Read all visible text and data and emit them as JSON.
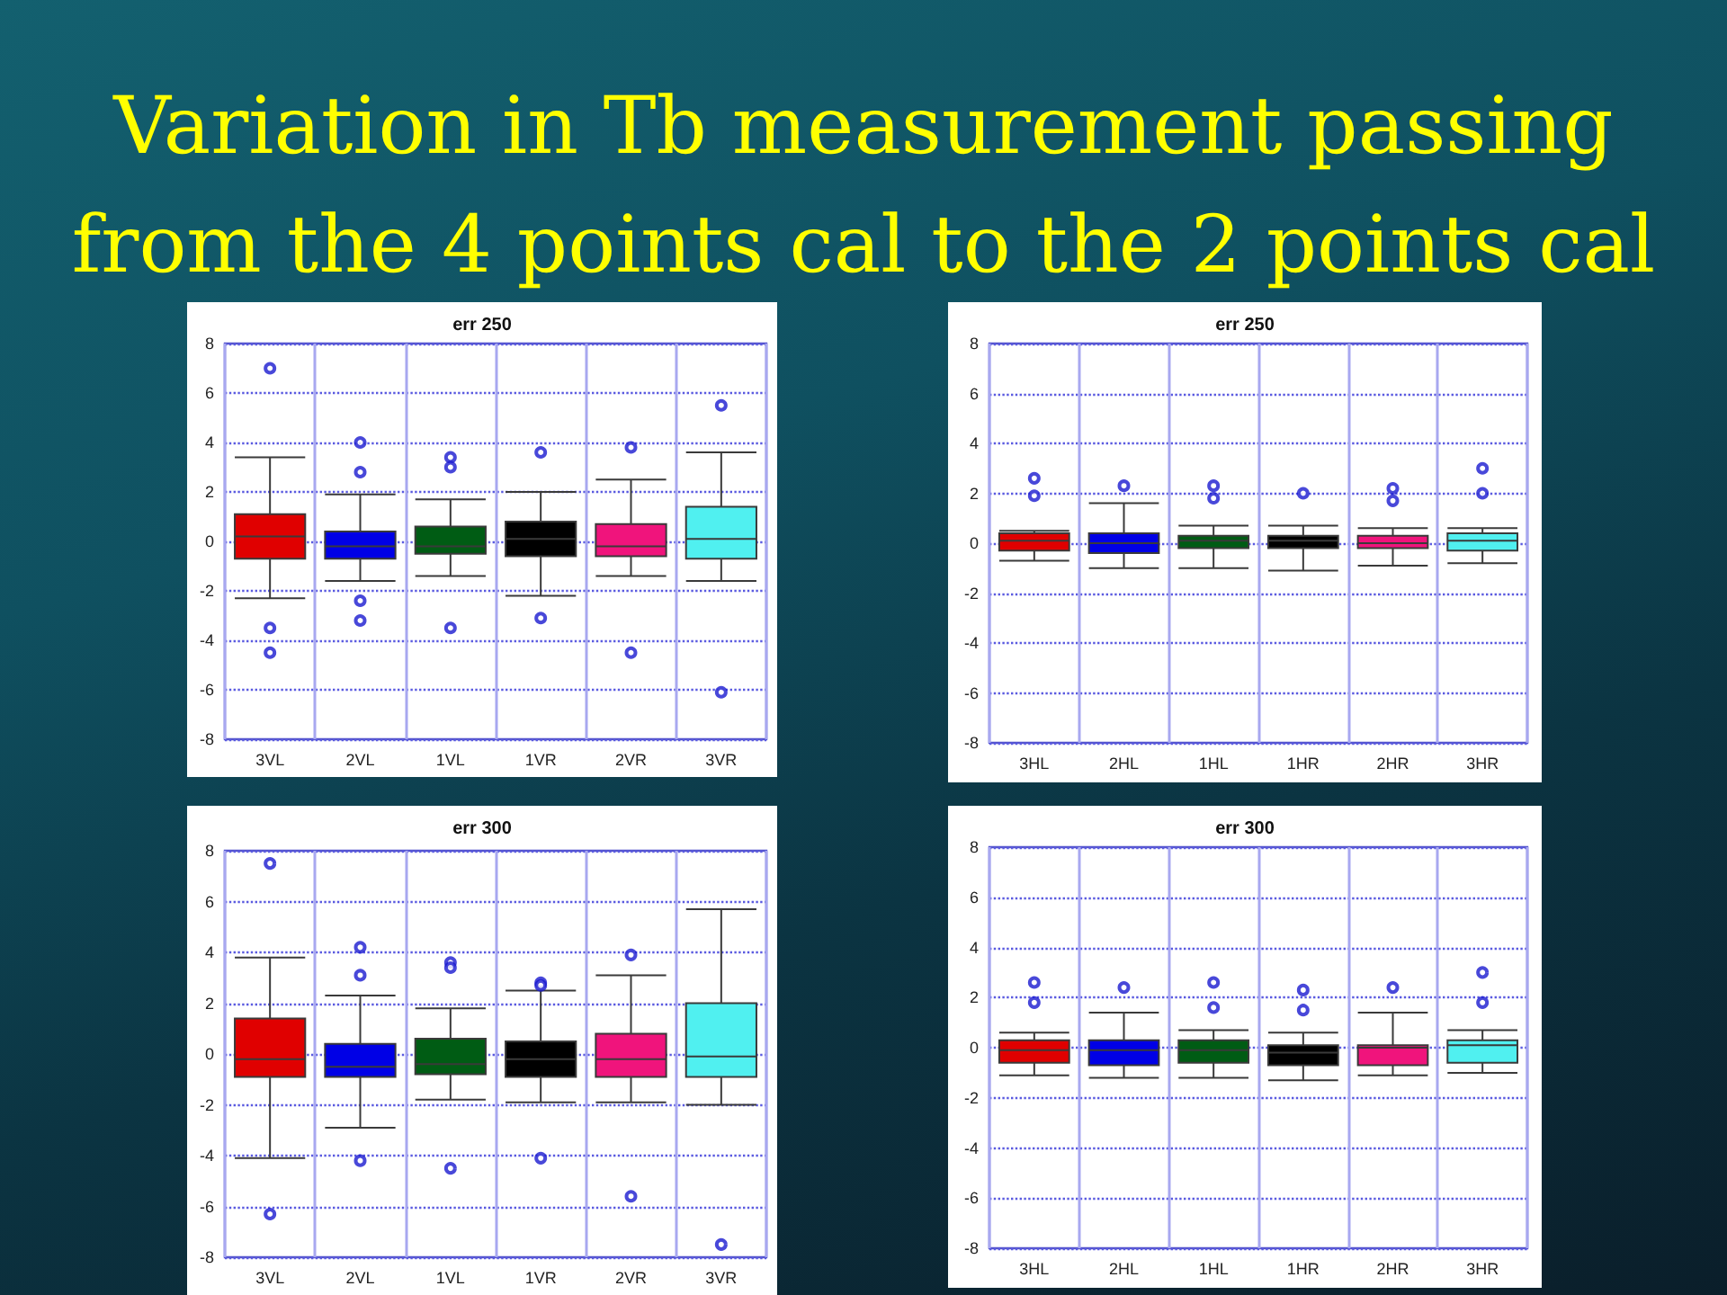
{
  "chart_data": [
    {
      "type": "other",
      "title": "Variation in Tb measurement passing from the 4 points cal to the 2 points cal"
    },
    {
      "type": "box",
      "title": "err 250",
      "categories": [
        "3VL",
        "2VL",
        "1VL",
        "1VR",
        "2VR",
        "3VR"
      ],
      "colors": [
        "#e00000",
        "#0000e6",
        "#005c14",
        "#000000",
        "#f0147c",
        "#50f0f0"
      ],
      "boxes": [
        {
          "low": -2.3,
          "q1": -0.7,
          "median": 0.2,
          "q3": 1.1,
          "high": 3.4,
          "outliers": [
            7.0,
            -3.5,
            -4.5
          ]
        },
        {
          "low": -1.6,
          "q1": -0.7,
          "median": -0.2,
          "q3": 0.4,
          "high": 1.9,
          "outliers": [
            4.0,
            2.8,
            -2.4,
            -3.2
          ]
        },
        {
          "low": -1.4,
          "q1": -0.5,
          "median": -0.2,
          "q3": 0.6,
          "high": 1.7,
          "outliers": [
            3.4,
            3.0,
            -3.5
          ]
        },
        {
          "low": -2.2,
          "q1": -0.6,
          "median": 0.1,
          "q3": 0.8,
          "high": 2.0,
          "outliers": [
            3.6,
            -3.1
          ]
        },
        {
          "low": -1.4,
          "q1": -0.6,
          "median": -0.2,
          "q3": 0.7,
          "high": 2.5,
          "outliers": [
            3.8,
            -4.5
          ]
        },
        {
          "low": -1.6,
          "q1": -0.7,
          "median": 0.1,
          "q3": 1.4,
          "high": 3.6,
          "outliers": [
            5.5,
            -6.1
          ]
        }
      ],
      "ylim": [
        -8,
        8
      ],
      "yticks": [
        -8,
        -6,
        -4,
        -2,
        0,
        2,
        4,
        6,
        8
      ],
      "grid": true
    },
    {
      "type": "box",
      "title": "err 250",
      "categories": [
        "3HL",
        "2HL",
        "1HL",
        "1HR",
        "2HR",
        "3HR"
      ],
      "colors": [
        "#e00000",
        "#0000e6",
        "#005c14",
        "#000000",
        "#f0147c",
        "#50f0f0"
      ],
      "boxes": [
        {
          "low": -0.7,
          "q1": -0.3,
          "median": 0.1,
          "q3": 0.4,
          "high": 0.5,
          "outliers": [
            2.6,
            1.9
          ]
        },
        {
          "low": -1.0,
          "q1": -0.4,
          "median": 0.0,
          "q3": 0.4,
          "high": 1.6,
          "outliers": [
            2.3
          ]
        },
        {
          "low": -1.0,
          "q1": -0.2,
          "median": 0.1,
          "q3": 0.3,
          "high": 0.7,
          "outliers": [
            2.3,
            1.8
          ]
        },
        {
          "low": -1.1,
          "q1": -0.2,
          "median": 0.1,
          "q3": 0.3,
          "high": 0.7,
          "outliers": [
            2.0
          ]
        },
        {
          "low": -0.9,
          "q1": -0.2,
          "median": 0.0,
          "q3": 0.3,
          "high": 0.6,
          "outliers": [
            2.2,
            1.7
          ]
        },
        {
          "low": -0.8,
          "q1": -0.3,
          "median": 0.1,
          "q3": 0.4,
          "high": 0.6,
          "outliers": [
            3.0,
            2.0
          ]
        }
      ],
      "ylim": [
        -8,
        8
      ],
      "yticks": [
        -8,
        -6,
        -4,
        -2,
        0,
        2,
        4,
        6,
        8
      ],
      "grid": true
    },
    {
      "type": "box",
      "title": "err 300",
      "categories": [
        "3VL",
        "2VL",
        "1VL",
        "1VR",
        "2VR",
        "3VR"
      ],
      "colors": [
        "#e00000",
        "#0000e6",
        "#005c14",
        "#000000",
        "#f0147c",
        "#50f0f0"
      ],
      "boxes": [
        {
          "low": -4.1,
          "q1": -0.9,
          "median": -0.2,
          "q3": 1.4,
          "high": 3.8,
          "outliers": [
            7.5,
            -6.3
          ]
        },
        {
          "low": -2.9,
          "q1": -0.9,
          "median": -0.5,
          "q3": 0.4,
          "high": 2.3,
          "outliers": [
            4.2,
            3.1,
            -4.2
          ]
        },
        {
          "low": -1.8,
          "q1": -0.8,
          "median": -0.4,
          "q3": 0.6,
          "high": 1.8,
          "outliers": [
            3.6,
            3.4,
            -4.5
          ]
        },
        {
          "low": -1.9,
          "q1": -0.9,
          "median": -0.2,
          "q3": 0.5,
          "high": 2.5,
          "outliers": [
            2.8,
            2.7,
            -4.1
          ]
        },
        {
          "low": -1.9,
          "q1": -0.9,
          "median": -0.2,
          "q3": 0.8,
          "high": 3.1,
          "outliers": [
            3.9,
            -5.6
          ]
        },
        {
          "low": -2.0,
          "q1": -0.9,
          "median": -0.1,
          "q3": 2.0,
          "high": 5.7,
          "outliers": [
            -7.5
          ]
        }
      ],
      "ylim": [
        -8,
        8
      ],
      "yticks": [
        -8,
        -6,
        -4,
        -2,
        0,
        2,
        4,
        6,
        8
      ],
      "grid": true
    },
    {
      "type": "box",
      "title": "err 300",
      "categories": [
        "3HL",
        "2HL",
        "1HL",
        "1HR",
        "2HR",
        "3HR"
      ],
      "colors": [
        "#e00000",
        "#0000e6",
        "#005c14",
        "#000000",
        "#f0147c",
        "#50f0f0"
      ],
      "boxes": [
        {
          "low": -1.1,
          "q1": -0.6,
          "median": -0.1,
          "q3": 0.3,
          "high": 0.6,
          "outliers": [
            2.6,
            1.8
          ]
        },
        {
          "low": -1.2,
          "q1": -0.7,
          "median": -0.1,
          "q3": 0.3,
          "high": 1.4,
          "outliers": [
            2.4
          ]
        },
        {
          "low": -1.2,
          "q1": -0.6,
          "median": -0.1,
          "q3": 0.3,
          "high": 0.7,
          "outliers": [
            2.6,
            1.6
          ]
        },
        {
          "low": -1.3,
          "q1": -0.7,
          "median": -0.2,
          "q3": 0.1,
          "high": 0.6,
          "outliers": [
            2.3,
            1.5
          ]
        },
        {
          "low": -1.1,
          "q1": -0.7,
          "median": 0.0,
          "q3": 0.1,
          "high": 1.4,
          "outliers": [
            2.4
          ]
        },
        {
          "low": -1.0,
          "q1": -0.6,
          "median": 0.1,
          "q3": 0.3,
          "high": 0.7,
          "outliers": [
            3.0,
            1.8
          ]
        }
      ],
      "ylim": [
        -8,
        8
      ],
      "yticks": [
        -8,
        -6,
        -4,
        -2,
        0,
        2,
        4,
        6,
        8
      ],
      "grid": true
    }
  ]
}
